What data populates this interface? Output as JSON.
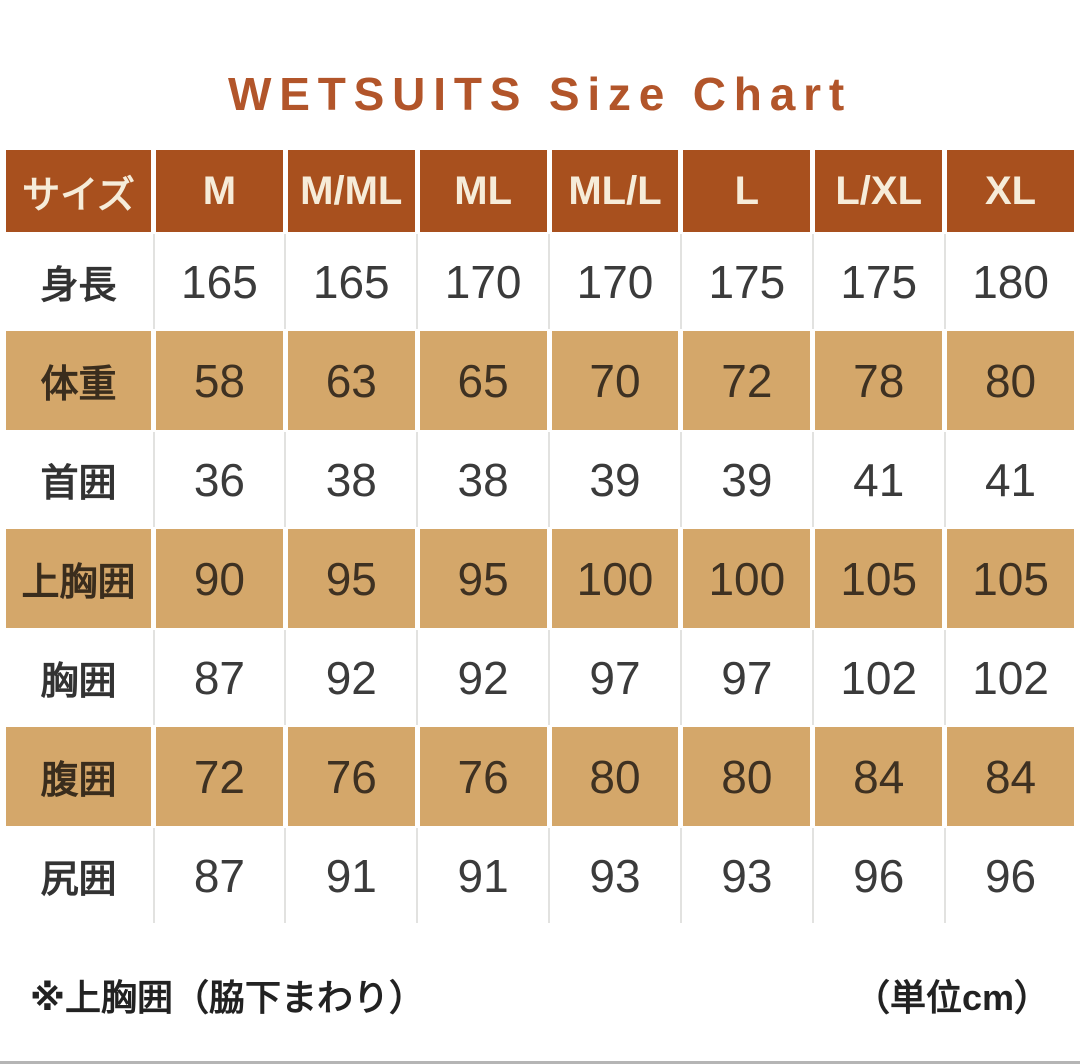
{
  "title": "WETSUITS Size Chart",
  "colors": {
    "title_text": "#b2552a",
    "header_bg": "#a8501e",
    "header_text": "#f6ecd9",
    "band_bg": "#d4a76a",
    "body_text": "#3b3b3b",
    "bottom_line": "#b5b5b5"
  },
  "chart_data": {
    "type": "table",
    "title": "WETSUITS Size Chart",
    "columns": [
      "サイズ",
      "M",
      "M/ML",
      "ML",
      "ML/L",
      "L",
      "L/XL",
      "XL"
    ],
    "rows": [
      {
        "label": "身長",
        "values": [
          "165",
          "165",
          "170",
          "170",
          "175",
          "175",
          "180"
        ]
      },
      {
        "label": "体重",
        "values": [
          "58",
          "63",
          "65",
          "70",
          "72",
          "78",
          "80"
        ]
      },
      {
        "label": "首囲",
        "values": [
          "36",
          "38",
          "38",
          "39",
          "39",
          "41",
          "41"
        ]
      },
      {
        "label": "上胸囲",
        "values": [
          "90",
          "95",
          "95",
          "100",
          "100",
          "105",
          "105"
        ]
      },
      {
        "label": "胸囲",
        "values": [
          "87",
          "92",
          "92",
          "97",
          "97",
          "102",
          "102"
        ]
      },
      {
        "label": "腹囲",
        "values": [
          "72",
          "76",
          "76",
          "80",
          "80",
          "84",
          "84"
        ]
      },
      {
        "label": "尻囲",
        "values": [
          "87",
          "91",
          "91",
          "93",
          "93",
          "96",
          "96"
        ]
      }
    ],
    "unit_label": "（単位cm）",
    "note": "※上胸囲（脇下まわり）"
  },
  "footer": {
    "note": "※上胸囲（脇下まわり）",
    "unit": "（単位cm）"
  }
}
